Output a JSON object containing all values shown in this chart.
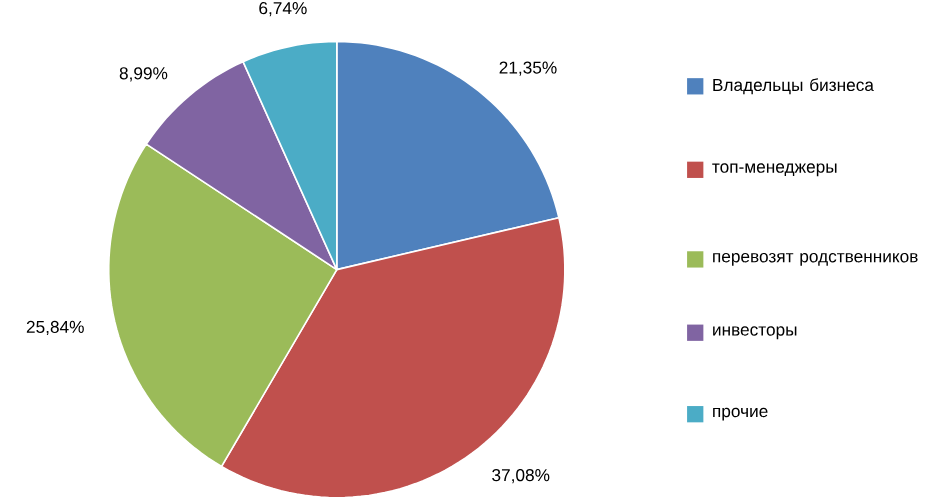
{
  "chart_data": {
    "type": "pie",
    "categories": [
      "Владельцы бизнеса",
      "топ-менеджеры",
      "перевозят родственников",
      "инвесторы",
      "прочие"
    ],
    "values": [
      21.35,
      37.08,
      25.84,
      8.99,
      6.74
    ],
    "value_labels": [
      "21,35%",
      "37,08%",
      "25,84%",
      "8,99%",
      "6,74%"
    ],
    "colors": [
      "#4f81bd",
      "#c0504d",
      "#9bbb59",
      "#8064a2",
      "#4bacc6"
    ],
    "legend": "right"
  }
}
